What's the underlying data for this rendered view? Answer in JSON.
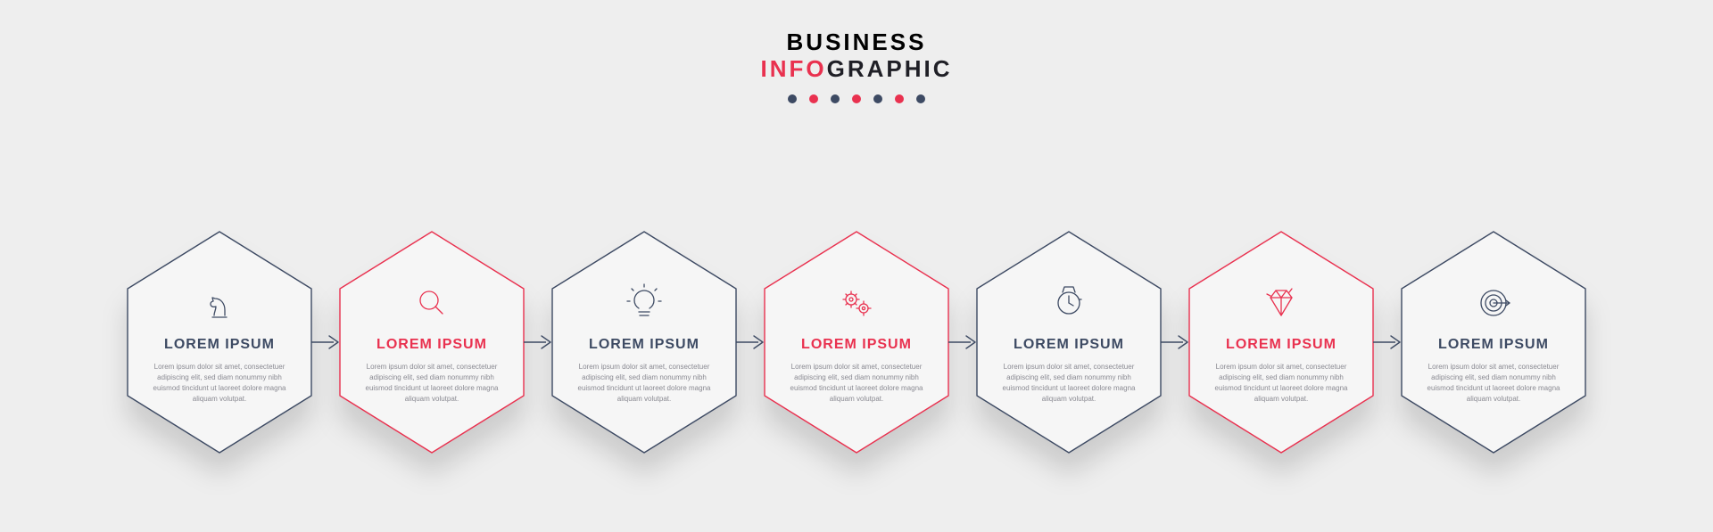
{
  "palette": {
    "navy": "#3d4a63",
    "red": "#e9314f",
    "bg": "#eeeeee",
    "body_text": "#8a8a92"
  },
  "header": {
    "line1": "BUSINESS",
    "line2_red": "INFO",
    "line2_rest": "GRAPHIC",
    "dot_colors": [
      "#3d4a63",
      "#e9314f",
      "#3d4a63",
      "#e9314f",
      "#3d4a63",
      "#e9314f",
      "#3d4a63"
    ]
  },
  "infographic": {
    "type": "process-hexagon-timeline",
    "hex_stroke_width": 1.4,
    "steps": [
      {
        "id": "step-1",
        "icon": "chess-knight-icon",
        "stroke": "#3d4a63",
        "icon_color": "#3d4a63",
        "title_color": "#3d4a63",
        "title": "LOREM IPSUM",
        "body": "Lorem ipsum dolor sit amet, consectetuer adipiscing elit, sed diam nonummy nibh euismod tincidunt ut laoreet dolore magna aliquam volutpat."
      },
      {
        "id": "step-2",
        "icon": "magnifier-icon",
        "stroke": "#e9314f",
        "icon_color": "#e9314f",
        "title_color": "#e9314f",
        "title": "LOREM IPSUM",
        "body": "Lorem ipsum dolor sit amet, consectetuer adipiscing elit, sed diam nonummy nibh euismod tincidunt ut laoreet dolore magna aliquam volutpat."
      },
      {
        "id": "step-3",
        "icon": "lightbulb-icon",
        "stroke": "#3d4a63",
        "icon_color": "#3d4a63",
        "title_color": "#3d4a63",
        "title": "LOREM IPSUM",
        "body": "Lorem ipsum dolor sit amet, consectetuer adipiscing elit, sed diam nonummy nibh euismod tincidunt ut laoreet dolore magna aliquam volutpat."
      },
      {
        "id": "step-4",
        "icon": "gears-icon",
        "stroke": "#e9314f",
        "icon_color": "#e9314f",
        "title_color": "#e9314f",
        "title": "LOREM IPSUM",
        "body": "Lorem ipsum dolor sit amet, consectetuer adipiscing elit, sed diam nonummy nibh euismod tincidunt ut laoreet dolore magna aliquam volutpat."
      },
      {
        "id": "step-5",
        "icon": "watch-icon",
        "stroke": "#3d4a63",
        "icon_color": "#3d4a63",
        "title_color": "#3d4a63",
        "title": "LOREM IPSUM",
        "body": "Lorem ipsum dolor sit amet, consectetuer adipiscing elit, sed diam nonummy nibh euismod tincidunt ut laoreet dolore magna aliquam volutpat."
      },
      {
        "id": "step-6",
        "icon": "diamond-icon",
        "stroke": "#e9314f",
        "icon_color": "#e9314f",
        "title_color": "#e9314f",
        "title": "LOREM IPSUM",
        "body": "Lorem ipsum dolor sit amet, consectetuer adipiscing elit, sed diam nonummy nibh euismod tincidunt ut laoreet dolore magna aliquam volutpat."
      },
      {
        "id": "step-7",
        "icon": "target-icon",
        "stroke": "#3d4a63",
        "icon_color": "#3d4a63",
        "title_color": "#3d4a63",
        "title": "LOREM IPSUM",
        "body": "Lorem ipsum dolor sit amet, consectetuer adipiscing elit, sed diam nonummy nibh euismod tincidunt ut laoreet dolore magna aliquam volutpat."
      }
    ],
    "arrow_color": "#3d4a63"
  }
}
